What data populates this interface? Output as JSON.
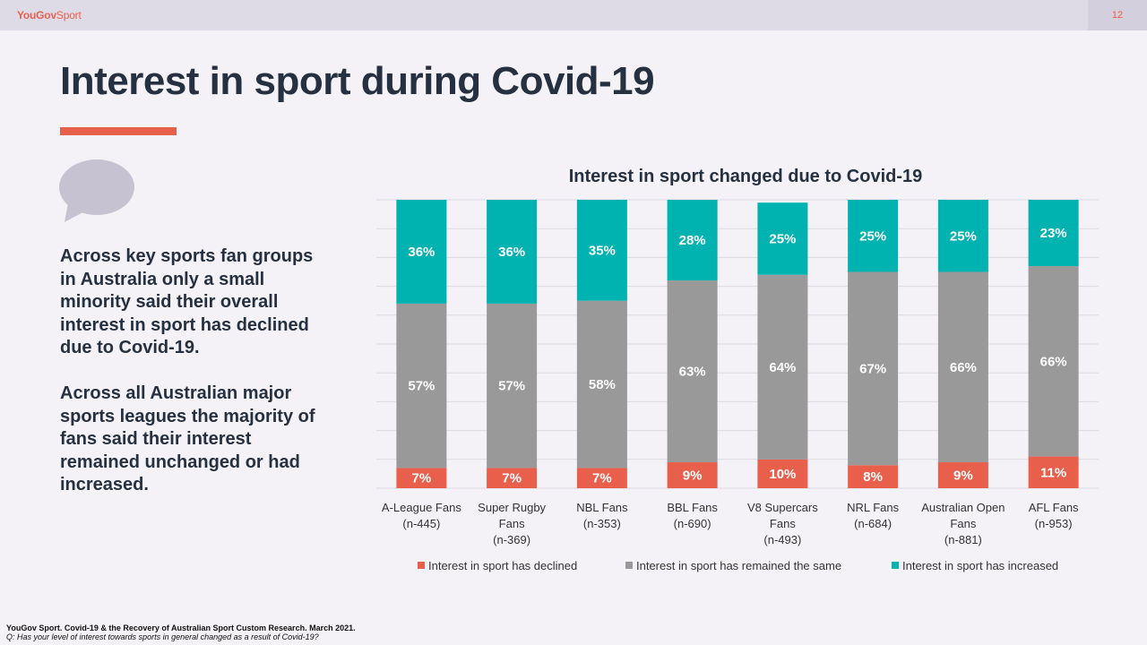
{
  "header": {
    "brand_bold": "YouGov",
    "brand_light": "Sport",
    "page_number": "12"
  },
  "title": "Interest in sport during Covid-19",
  "body": {
    "paragraph1": "Across key sports fan groups in Australia only a small minority said their overall interest in sport has declined due to Covid-19.",
    "paragraph2": "Across all Australian major sports leagues the majority of fans said their interest remained unchanged or had increased."
  },
  "footer": {
    "source": "YouGov Sport. Covid-19 & the Recovery of Australian Sport Custom Research. March 2021.",
    "question": "Q: Has your level of interest towards sports in general changed as a result of Covid-19?"
  },
  "colors": {
    "declined": "#e8604c",
    "same": "#999999",
    "increased": "#00b3b0",
    "accent": "#e8604c"
  },
  "chart_data": {
    "type": "bar",
    "stacked": true,
    "title": "Interest in sport changed due to Covid-19",
    "categories": [
      [
        "A-League Fans",
        "(n-445)"
      ],
      [
        "Super Rugby",
        "Fans",
        "(n-369)"
      ],
      [
        "NBL Fans",
        "(n-353)"
      ],
      [
        "BBL Fans",
        "(n-690)"
      ],
      [
        "V8 Supercars",
        "Fans",
        "(n-493)"
      ],
      [
        "NRL Fans",
        "(n-684)"
      ],
      [
        "Australian Open",
        "Fans",
        "(n-881)"
      ],
      [
        "AFL Fans",
        "(n-953)"
      ]
    ],
    "series": [
      {
        "name": "Interest in sport has declined",
        "values": [
          7,
          7,
          7,
          9,
          10,
          8,
          9,
          11
        ],
        "labels": [
          "7%",
          "7%",
          "7%",
          "9%",
          "10%",
          "8%",
          "9%",
          "11%"
        ]
      },
      {
        "name": "Interest in sport has remained the same",
        "values": [
          57,
          57,
          58,
          63,
          64,
          67,
          66,
          66
        ],
        "labels": [
          "57%",
          "57%",
          "58%",
          "63%",
          "64%",
          "67%",
          "66%",
          "66%"
        ]
      },
      {
        "name": "Interest in sport has increased",
        "values": [
          36,
          36,
          35,
          28,
          25,
          25,
          25,
          23
        ],
        "labels": [
          "36%",
          "36%",
          "35%",
          "28%",
          "25%",
          "25%",
          "25%",
          "23%"
        ]
      }
    ],
    "ylim": [
      0,
      100
    ],
    "grid": true,
    "legend": "bottom"
  }
}
